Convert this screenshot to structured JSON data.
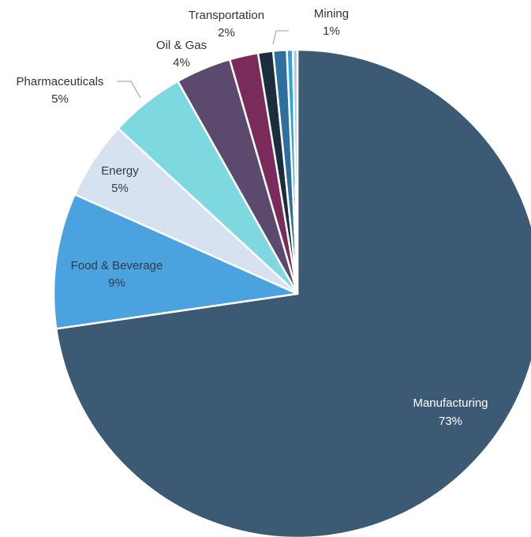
{
  "chart_data": {
    "type": "pie",
    "title": "",
    "slices": [
      {
        "name": "Manufacturing",
        "label": "73%",
        "value": 73.0,
        "color": "#3d5a74"
      },
      {
        "name": "Food & Beverage",
        "label": "9%",
        "value": 9.0,
        "color": "#4aa3df"
      },
      {
        "name": "Energy",
        "label": "5%",
        "value": 5.2,
        "color": "#d6e2f0"
      },
      {
        "name": "Pharmaceuticals",
        "label": "5%",
        "value": 5.0,
        "color": "#7dd8df"
      },
      {
        "name": "Oil & Gas",
        "label": "4%",
        "value": 3.7,
        "color": "#5b4a6e"
      },
      {
        "name": "Transportation",
        "label": "2%",
        "value": 1.9,
        "color": "#7a2a5b"
      },
      {
        "name": "",
        "label": "",
        "value": 1.0,
        "color": "#1c2e3e"
      },
      {
        "name": "Mining",
        "label": "1%",
        "value": 0.9,
        "color": "#2e6f9e"
      },
      {
        "name": "",
        "label": "",
        "value": 0.4,
        "color": "#2ba4d8"
      },
      {
        "name": "",
        "label": "",
        "value": 0.3,
        "color": "#a9c9ea"
      }
    ],
    "start_angle_deg": 0,
    "direction": "clockwise-from-top"
  }
}
